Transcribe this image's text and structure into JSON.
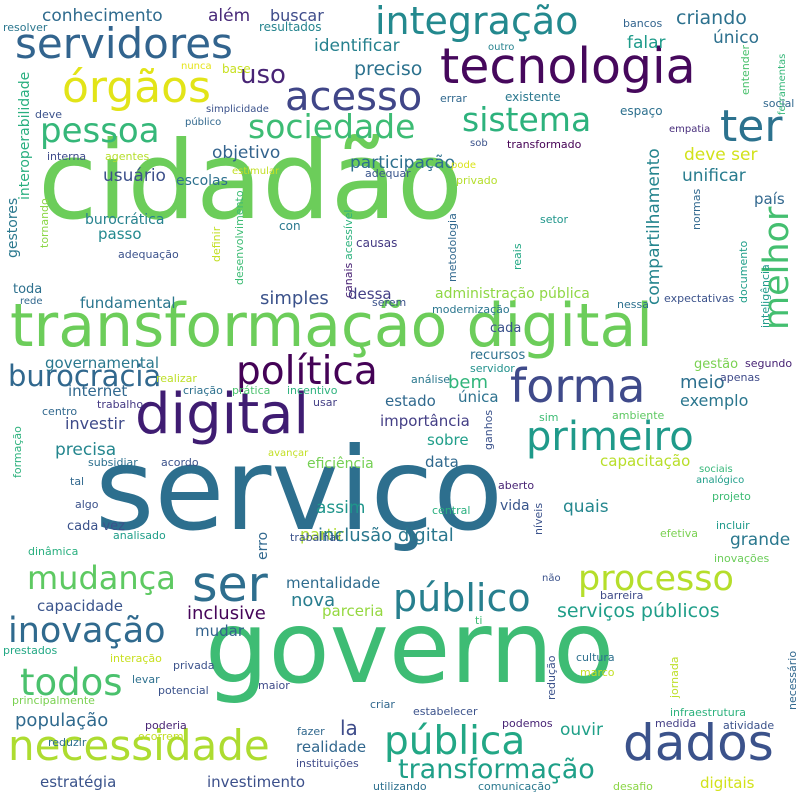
{
  "words": [
    {
      "text": "cidadão",
      "color": "#6ccd5a"
    },
    {
      "text": "serviço",
      "color": "#2d6f8e"
    },
    {
      "text": "governo",
      "color": "#3ebc74"
    },
    {
      "text": "transformação digital",
      "color": "#6ccd5a"
    },
    {
      "text": "tecnologia",
      "color": "#46085c"
    },
    {
      "text": "servidores",
      "color": "#32648e"
    },
    {
      "text": "integração",
      "color": "#23898e"
    },
    {
      "text": "digital",
      "color": "#3f1c72"
    },
    {
      "text": "dados",
      "color": "#3b528b"
    },
    {
      "text": "necessidade",
      "color": "#addc30"
    },
    {
      "text": "órgãos",
      "color": "#e2e418"
    },
    {
      "text": "acesso",
      "color": "#404688"
    },
    {
      "text": "pessoa",
      "color": "#35b779"
    },
    {
      "text": "sociedade",
      "color": "#3dbc74"
    },
    {
      "text": "sistema",
      "color": "#2db27d"
    },
    {
      "text": "ter",
      "color": "#2c728e"
    },
    {
      "text": "forma",
      "color": "#3f4a8a"
    },
    {
      "text": "política",
      "color": "#440256"
    },
    {
      "text": "primeiro",
      "color": "#1f9a8a"
    },
    {
      "text": "melhor",
      "color": "#44bf70"
    },
    {
      "text": "ser",
      "color": "#2e6e8e"
    },
    {
      "text": "mudança",
      "color": "#5ec962"
    },
    {
      "text": "processo",
      "color": "#b5de2b"
    },
    {
      "text": "público",
      "color": "#277f8e"
    },
    {
      "text": "inovação",
      "color": "#306a8e"
    },
    {
      "text": "todos",
      "color": "#4ac16d"
    },
    {
      "text": "pública",
      "color": "#22a785"
    },
    {
      "text": "transformação",
      "color": "#1fa088"
    },
    {
      "text": "burocracia",
      "color": "#31688e"
    },
    {
      "text": "conhecimento",
      "color": "#2f6b8e"
    },
    {
      "text": "além",
      "color": "#482979"
    },
    {
      "text": "buscar",
      "color": "#3e4c8a"
    },
    {
      "text": "resultados",
      "color": "#25848e"
    },
    {
      "text": "criando",
      "color": "#2c718e"
    },
    {
      "text": "único",
      "color": "#2d708e"
    },
    {
      "text": "uso",
      "color": "#482475"
    },
    {
      "text": "identificar",
      "color": "#26818e"
    },
    {
      "text": "preciso",
      "color": "#2c728e"
    },
    {
      "text": "falar",
      "color": "#1e9b8a"
    },
    {
      "text": "objetivo",
      "color": "#33638d"
    },
    {
      "text": "participação",
      "color": "#2d708e"
    },
    {
      "text": "deve ser",
      "color": "#d2e21b"
    },
    {
      "text": "usuário",
      "color": "#3c4f8a"
    },
    {
      "text": "escolas",
      "color": "#2d708e"
    },
    {
      "text": "unificar",
      "color": "#287c8e"
    },
    {
      "text": "compartilhamento",
      "color": "#25858e"
    },
    {
      "text": "país",
      "color": "#31678e"
    },
    {
      "text": "burocrática",
      "color": "#26828e"
    },
    {
      "text": "passo",
      "color": "#23898e"
    },
    {
      "text": "fundamental",
      "color": "#2a768e"
    },
    {
      "text": "simples",
      "color": "#3b528b"
    },
    {
      "text": "dessa",
      "color": "#433e85"
    },
    {
      "text": "administração pública",
      "color": "#8fd744"
    },
    {
      "text": "governamental",
      "color": "#2a788e"
    },
    {
      "text": "internet",
      "color": "#31688e"
    },
    {
      "text": "bem",
      "color": "#31b57b"
    },
    {
      "text": "meio",
      "color": "#2d708e"
    },
    {
      "text": "investir",
      "color": "#3e4a89"
    },
    {
      "text": "estado",
      "color": "#30698e"
    },
    {
      "text": "única",
      "color": "#2c718e"
    },
    {
      "text": "exemplo",
      "color": "#2a768e"
    },
    {
      "text": "precisa",
      "color": "#24868e"
    },
    {
      "text": "importância",
      "color": "#433e85"
    },
    {
      "text": "sobre",
      "color": "#1f9e89"
    },
    {
      "text": "data",
      "color": "#30698e"
    },
    {
      "text": "eficiência",
      "color": "#75d054"
    },
    {
      "text": "capacitação",
      "color": "#b8de29"
    },
    {
      "text": "assim",
      "color": "#1f958b"
    },
    {
      "text": "vida",
      "color": "#39568c"
    },
    {
      "text": "quais",
      "color": "#24878e"
    },
    {
      "text": "partir",
      "color": "#addc30"
    },
    {
      "text": "grande",
      "color": "#2a788e"
    },
    {
      "text": "inclusão digital",
      "color": "#2a778e"
    },
    {
      "text": "mentalidade",
      "color": "#2f6c8e"
    },
    {
      "text": "nova",
      "color": "#287d8e"
    },
    {
      "text": "parceria",
      "color": "#95d840"
    },
    {
      "text": "serviços públicos",
      "color": "#1f9e89"
    },
    {
      "text": "capacidade",
      "color": "#3a548c"
    },
    {
      "text": "inclusive",
      "color": "#450559"
    },
    {
      "text": "mudar",
      "color": "#33638d"
    },
    {
      "text": "população",
      "color": "#306a8e"
    },
    {
      "text": "la",
      "color": "#3e4c8a"
    },
    {
      "text": "realidade",
      "color": "#31678e"
    },
    {
      "text": "ouvir",
      "color": "#1fa088"
    },
    {
      "text": "estratégia",
      "color": "#3a538b"
    },
    {
      "text": "investimento",
      "color": "#3c508b"
    },
    {
      "text": "digitais",
      "color": "#d2e21b"
    },
    {
      "text": "recursos",
      "color": "#2c718e"
    },
    {
      "text": "cada",
      "color": "#3b528b"
    },
    {
      "text": "cada vez",
      "color": "#3b528b"
    },
    {
      "text": "resolver",
      "color": "#2a768e"
    },
    {
      "text": "bancos",
      "color": "#32648e"
    },
    {
      "text": "outro",
      "color": "#26828e"
    },
    {
      "text": "entender",
      "color": "#4ac16d"
    },
    {
      "text": "ferramentas",
      "color": "#35b779"
    },
    {
      "text": "nunca",
      "color": "#e5e419"
    },
    {
      "text": "base",
      "color": "#c8e020"
    },
    {
      "text": "errar",
      "color": "#31688e"
    },
    {
      "text": "existente",
      "color": "#2a788e"
    },
    {
      "text": "espaço",
      "color": "#2d708e"
    },
    {
      "text": "social",
      "color": "#31688e"
    },
    {
      "text": "interoperabilidade",
      "color": "#29af7f"
    },
    {
      "text": "deve",
      "color": "#3b528b"
    },
    {
      "text": "simplicidade",
      "color": "#3b528b"
    },
    {
      "text": "público",
      "color": "#31688e"
    },
    {
      "text": "sob",
      "color": "#3b528b"
    },
    {
      "text": "transformado",
      "color": "#440154"
    },
    {
      "text": "empatia",
      "color": "#472d7b"
    },
    {
      "text": "interna",
      "color": "#3e4a89"
    },
    {
      "text": "agentes",
      "color": "#b5de2b"
    },
    {
      "text": "estimular",
      "color": "#c2df23"
    },
    {
      "text": "adequar",
      "color": "#39558c"
    },
    {
      "text": "privado",
      "color": "#b5de2b"
    },
    {
      "text": "pode",
      "color": "#dae319"
    },
    {
      "text": "gestores",
      "color": "#2a788e"
    },
    {
      "text": "tornando",
      "color": "#8bd646"
    },
    {
      "text": "adequação",
      "color": "#3b528b"
    },
    {
      "text": "definir",
      "color": "#c2df23"
    },
    {
      "text": "desenvolvimento",
      "color": "#3dbc74"
    },
    {
      "text": "con",
      "color": "#2a788e"
    },
    {
      "text": "canais",
      "color": "#482173"
    },
    {
      "text": "acessível",
      "color": "#2db27d"
    },
    {
      "text": "metodologia",
      "color": "#31688e"
    },
    {
      "text": "causas",
      "color": "#443983"
    },
    {
      "text": "setor",
      "color": "#1f968b"
    },
    {
      "text": "reais",
      "color": "#22a884"
    },
    {
      "text": "documento",
      "color": "#1f9e89"
    },
    {
      "text": "normas",
      "color": "#31688e"
    },
    {
      "text": "inteligência",
      "color": "#1f9a8a"
    },
    {
      "text": "toda",
      "color": "#2d708e"
    },
    {
      "text": "rede",
      "color": "#31688e"
    },
    {
      "text": "serem",
      "color": "#3b528b"
    },
    {
      "text": "modernização",
      "color": "#2a768e"
    },
    {
      "text": "nessa",
      "color": "#2d708e"
    },
    {
      "text": "expectativas",
      "color": "#3b528b"
    },
    {
      "text": "gestão",
      "color": "#7ad151"
    },
    {
      "text": "segundo",
      "color": "#482475"
    },
    {
      "text": "servidor",
      "color": "#21918c"
    },
    {
      "text": "realizar",
      "color": "#bddf26"
    },
    {
      "text": "criação",
      "color": "#2d708e"
    },
    {
      "text": "prática",
      "color": "#4ac16d"
    },
    {
      "text": "incentivo",
      "color": "#2db27d"
    },
    {
      "text": "análise",
      "color": "#2a788e"
    },
    {
      "text": "apenas",
      "color": "#3e4a89"
    },
    {
      "text": "centro",
      "color": "#31688e"
    },
    {
      "text": "trabalho",
      "color": "#443983"
    },
    {
      "text": "usar",
      "color": "#433e85"
    },
    {
      "text": "ambiente",
      "color": "#5ec962"
    },
    {
      "text": "sim",
      "color": "#3dbc74"
    },
    {
      "text": "ganhos",
      "color": "#3b528b"
    },
    {
      "text": "formação",
      "color": "#2db27d"
    },
    {
      "text": "subsidiar",
      "color": "#2d708e"
    },
    {
      "text": "acordo",
      "color": "#3b528b"
    },
    {
      "text": "avançar",
      "color": "#c2df23"
    },
    {
      "text": "sociais",
      "color": "#35b779"
    },
    {
      "text": "analógico",
      "color": "#1f9e89"
    },
    {
      "text": "projeto",
      "color": "#3dbc74"
    },
    {
      "text": "tal",
      "color": "#31688e"
    },
    {
      "text": "algo",
      "color": "#3b528b"
    },
    {
      "text": "aberto",
      "color": "#482475"
    },
    {
      "text": "central",
      "color": "#29af7f"
    },
    {
      "text": "níveis",
      "color": "#3b528b"
    },
    {
      "text": "incluir",
      "color": "#1f9a8a"
    },
    {
      "text": "dinâmica",
      "color": "#29af7f"
    },
    {
      "text": "analisado",
      "color": "#1f9e89"
    },
    {
      "text": "erro",
      "color": "#31688e"
    },
    {
      "text": "trabalhar",
      "color": "#3b528b"
    },
    {
      "text": "efetiva",
      "color": "#7ad151"
    },
    {
      "text": "inovações",
      "color": "#6ccd5a"
    },
    {
      "text": "não",
      "color": "#3b528b"
    },
    {
      "text": "barreira",
      "color": "#3e4a89"
    },
    {
      "text": "ti",
      "color": "#3dbc74"
    },
    {
      "text": "prestados",
      "color": "#22a884"
    },
    {
      "text": "interação",
      "color": "#c8e020"
    },
    {
      "text": "privada",
      "color": "#3b528b"
    },
    {
      "text": "levar",
      "color": "#2d708e"
    },
    {
      "text": "cultura",
      "color": "#2d708e"
    },
    {
      "text": "marco",
      "color": "#c2df23"
    },
    {
      "text": "necessário",
      "color": "#31688e"
    },
    {
      "text": "potencial",
      "color": "#3b528b"
    },
    {
      "text": "maior",
      "color": "#3e4a89"
    },
    {
      "text": "redução",
      "color": "#3b528b"
    },
    {
      "text": "jornada",
      "color": "#bddf26"
    },
    {
      "text": "principalmente",
      "color": "#7ad151"
    },
    {
      "text": "criar",
      "color": "#31688e"
    },
    {
      "text": "estabelecer",
      "color": "#3b528b"
    },
    {
      "text": "infraestrutura",
      "color": "#2db27d"
    },
    {
      "text": "atividade",
      "color": "#3b528b"
    },
    {
      "text": "poderia",
      "color": "#482475"
    },
    {
      "text": "fazer",
      "color": "#31688e"
    },
    {
      "text": "podemos",
      "color": "#482475"
    },
    {
      "text": "medida",
      "color": "#433e85"
    },
    {
      "text": "reduzir",
      "color": "#2d708e"
    },
    {
      "text": "ocorrem",
      "color": "#c2df23"
    },
    {
      "text": "instituições",
      "color": "#3e4a89"
    },
    {
      "text": "utilizando",
      "color": "#2d708e"
    },
    {
      "text": "comunicação",
      "color": "#2a788e"
    },
    {
      "text": "desafio",
      "color": "#8bd646"
    }
  ]
}
